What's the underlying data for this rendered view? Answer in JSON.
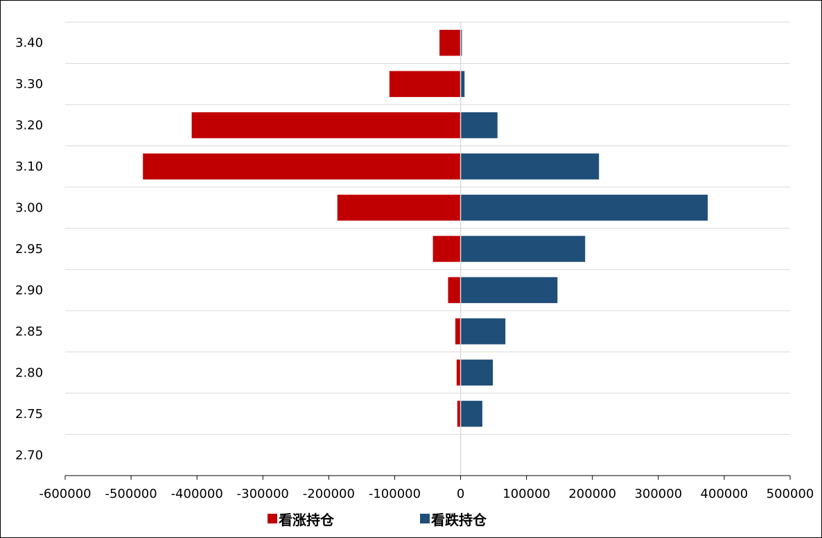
{
  "chart_data": {
    "type": "bar",
    "orientation": "horizontal",
    "categories": [
      "2.70",
      "2.75",
      "2.80",
      "2.85",
      "2.90",
      "2.95",
      "3.00",
      "3.10",
      "3.20",
      "3.30",
      "3.40"
    ],
    "series": [
      {
        "name": "看涨持仓",
        "color": "#c00000",
        "values": [
          0,
          -5000,
          -6000,
          -8000,
          -19000,
          -42000,
          -187000,
          -482000,
          -408000,
          -108000,
          -32000
        ]
      },
      {
        "name": "看跌持仓",
        "color": "#1f4e79",
        "values": [
          0,
          33000,
          49000,
          68000,
          147000,
          189000,
          375000,
          210000,
          56000,
          6000,
          2000
        ]
      }
    ],
    "xlim": [
      -600000,
      500000
    ],
    "x_ticks": [
      "-600000",
      "-500000",
      "-400000",
      "-300000",
      "-200000",
      "-100000",
      "0",
      "100000",
      "200000",
      "300000",
      "400000",
      "500000"
    ],
    "title": "",
    "xlabel": "",
    "ylabel": "",
    "grid": "horizontal",
    "legend_position": "bottom"
  }
}
